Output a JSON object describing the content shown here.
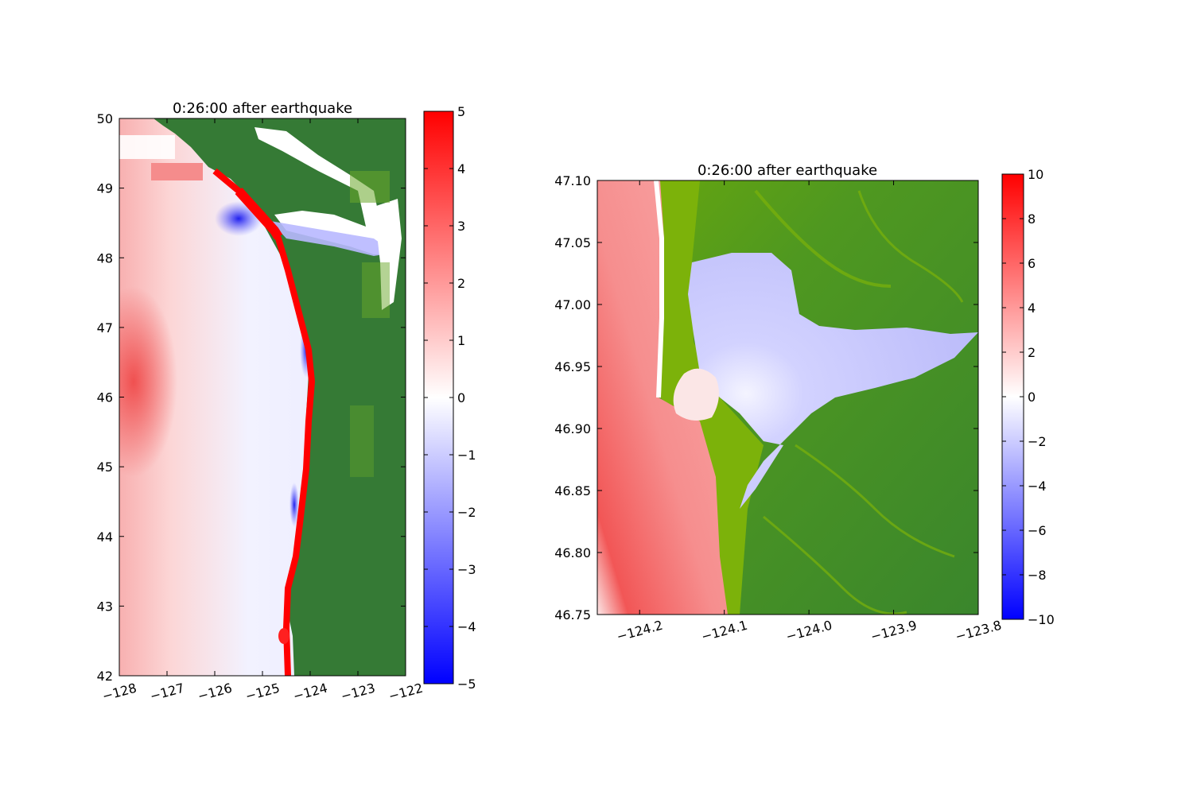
{
  "chart_data": [
    {
      "type": "heatmap",
      "title": "0:26:00 after earthquake",
      "xlabel": "",
      "ylabel": "",
      "xlim": [
        -128,
        -122
      ],
      "ylim": [
        42,
        50
      ],
      "xticks": [
        -128,
        -127,
        -126,
        -125,
        -124,
        -123,
        -122
      ],
      "yticks": [
        42,
        43,
        44,
        45,
        46,
        47,
        48,
        49,
        50
      ],
      "xtick_labels": [
        "−128",
        "−127",
        "−126",
        "−125",
        "−124",
        "−123",
        "−122"
      ],
      "ytick_labels": [
        "42",
        "43",
        "44",
        "45",
        "46",
        "47",
        "48",
        "49",
        "50"
      ],
      "colorbar": {
        "range": [
          -5,
          5
        ],
        "ticks": [
          -5,
          -4,
          -3,
          -2,
          -1,
          0,
          1,
          2,
          3,
          4,
          5
        ],
        "tick_labels": [
          "−5",
          "−4",
          "−3",
          "−2",
          "−1",
          "0",
          "1",
          "2",
          "3",
          "4",
          "5"
        ],
        "colormap": [
          "#0000ff",
          "#ffffff",
          "#ff0000"
        ]
      },
      "land_color": "#357a35"
    },
    {
      "type": "heatmap",
      "title": "0:26:00 after earthquake",
      "xlabel": "",
      "ylabel": "",
      "xlim": [
        -124.25,
        -123.8
      ],
      "ylim": [
        46.75,
        47.1
      ],
      "xticks": [
        -124.2,
        -124.1,
        -124.0,
        -123.9,
        -123.8
      ],
      "yticks": [
        46.75,
        46.8,
        46.85,
        46.9,
        46.95,
        47.0,
        47.05,
        47.1
      ],
      "xtick_labels": [
        "−124.2",
        "−124.1",
        "−124.0",
        "−123.9",
        "−123.8"
      ],
      "ytick_labels": [
        "46.75",
        "46.80",
        "46.85",
        "46.90",
        "46.95",
        "47.00",
        "47.05",
        "47.10"
      ],
      "colorbar": {
        "range": [
          -10,
          10
        ],
        "ticks": [
          -10,
          -8,
          -6,
          -4,
          -2,
          0,
          2,
          4,
          6,
          8,
          10
        ],
        "tick_labels": [
          "−10",
          "−8",
          "−6",
          "−4",
          "−2",
          "0",
          "2",
          "4",
          "6",
          "8",
          "10"
        ],
        "colormap": [
          "#0000ff",
          "#ffffff",
          "#ff0000"
        ]
      },
      "land_color": "#3c8a2e",
      "lowland_color": "#7cb20a"
    }
  ]
}
